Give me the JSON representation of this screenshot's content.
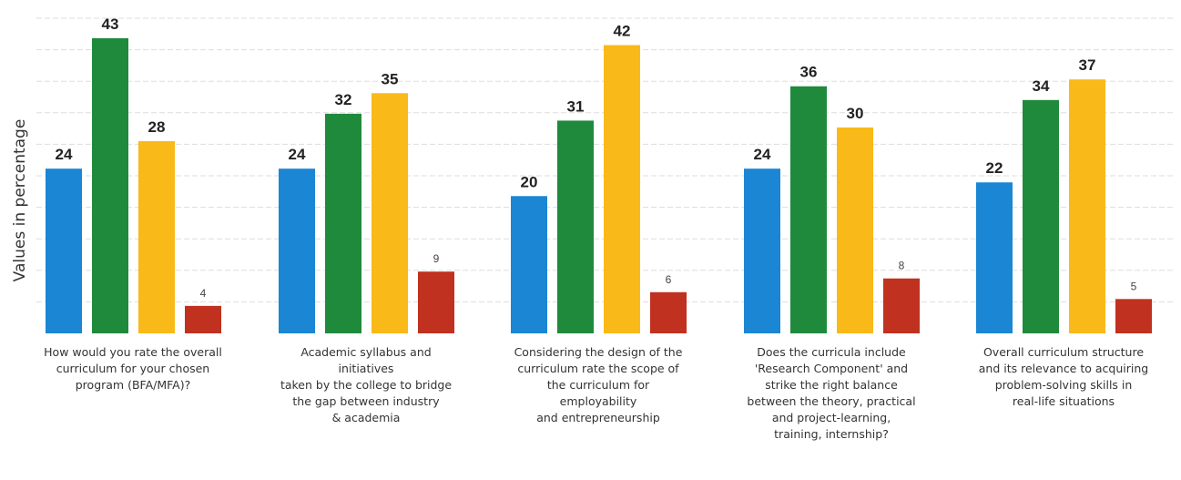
{
  "chart_data": {
    "type": "bar",
    "ylabel": "Values in percentage",
    "ylim": [
      0,
      47
    ],
    "grid": true,
    "categories": [
      [
        "How would you rate the overall",
        "curriculum for your chosen",
        "program (BFA/MFA)?"
      ],
      [
        "Academic syllabus and",
        "initiatives",
        "taken by the college to bridge",
        "the gap between industry",
        "& academia"
      ],
      [
        "Considering the design of the",
        "curriculum rate the scope of",
        "the curriculum for",
        "employability",
        "and entrepreneurship"
      ],
      [
        "Does the curricula include",
        "'Research Component' and",
        "strike the right balance",
        "between the theory, practical",
        "and project-learning,",
        "training, internship?"
      ],
      [
        "Overall curriculum structure",
        "and its relevance to acquiring",
        "problem-solving skills in",
        "real-life situations"
      ]
    ],
    "series": [
      {
        "color": "#1a86d4",
        "values": [
          24,
          24,
          20,
          24,
          22
        ]
      },
      {
        "color": "#1f8a3c",
        "values": [
          43,
          32,
          31,
          36,
          34
        ]
      },
      {
        "color": "#f9b918",
        "values": [
          28,
          35,
          42,
          30,
          37
        ]
      },
      {
        "color": "#c0311f",
        "values": [
          4,
          9,
          6,
          8,
          5
        ]
      }
    ]
  }
}
